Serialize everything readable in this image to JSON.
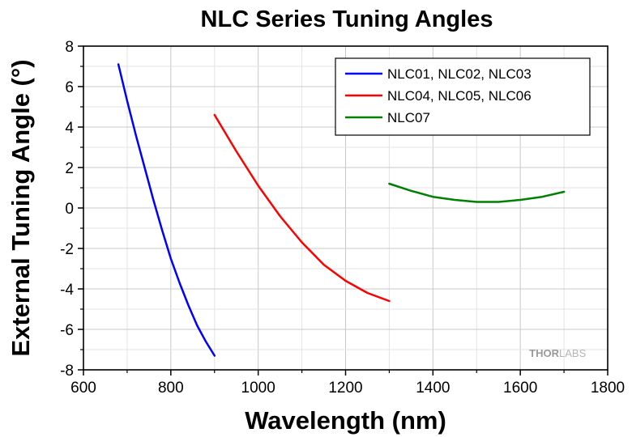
{
  "chart_data": {
    "type": "line",
    "title": "NLC Series Tuning Angles",
    "xlabel": "Wavelength (nm)",
    "ylabel": "External Tuning Angle (°)",
    "xlim": [
      600,
      1800
    ],
    "ylim": [
      -8,
      8
    ],
    "x_ticks": [
      600,
      800,
      1000,
      1200,
      1400,
      1600,
      1800
    ],
    "y_ticks": [
      -8,
      -6,
      -4,
      -2,
      0,
      2,
      4,
      6,
      8
    ],
    "grid": true,
    "legend_position": "top-right",
    "watermark": {
      "bold": "THOR",
      "light": "LABS"
    },
    "series": [
      {
        "name": "NLC01, NLC02, NLC03",
        "color": "#0000ff",
        "x": [
          680,
          700,
          720,
          740,
          760,
          780,
          800,
          820,
          840,
          860,
          880,
          900
        ],
        "y": [
          7.1,
          5.3,
          3.6,
          2.0,
          0.4,
          -1.1,
          -2.5,
          -3.7,
          -4.8,
          -5.8,
          -6.6,
          -7.3
        ]
      },
      {
        "name": "NLC04, NLC05, NLC06",
        "color": "#ff0000",
        "x": [
          900,
          950,
          1000,
          1050,
          1100,
          1150,
          1200,
          1250,
          1300
        ],
        "y": [
          4.6,
          2.8,
          1.1,
          -0.4,
          -1.7,
          -2.8,
          -3.6,
          -4.2,
          -4.6
        ]
      },
      {
        "name": "NLC07",
        "color": "#008000",
        "x": [
          1300,
          1350,
          1400,
          1450,
          1500,
          1550,
          1600,
          1650,
          1700
        ],
        "y": [
          1.2,
          0.85,
          0.55,
          0.4,
          0.3,
          0.3,
          0.4,
          0.55,
          0.8
        ]
      }
    ]
  }
}
